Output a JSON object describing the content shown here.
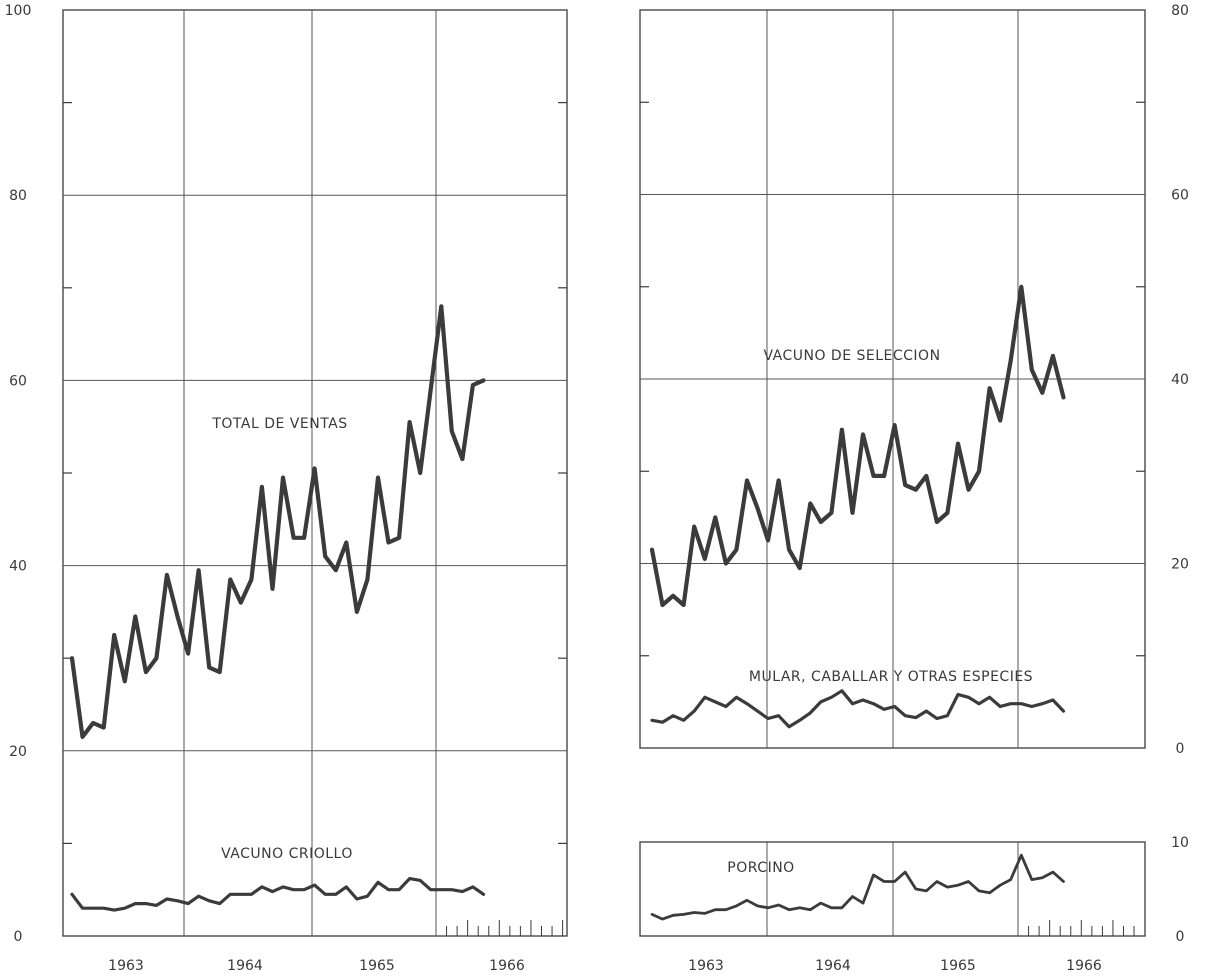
{
  "chart_data": [
    {
      "type": "line",
      "panel": "left",
      "x_start": "1963-01",
      "x_step": "month",
      "ylim": [
        0,
        100
      ],
      "yticks": [
        "100",
        "80",
        "60",
        "40",
        "20",
        "0"
      ],
      "minor_yticks": [
        10,
        30,
        50,
        70,
        90
      ],
      "xtick_labels": [
        "1963",
        "1964",
        "1965",
        "1966"
      ],
      "grid": true,
      "series": [
        {
          "name": "TOTAL DE VENTAS",
          "values": [
            30,
            21.5,
            23,
            22.5,
            32.5,
            27.5,
            34.5,
            28.5,
            30,
            39,
            34.5,
            30.5,
            39.5,
            29,
            28.5,
            38.5,
            36,
            38.5,
            48.5,
            37.5,
            49.5,
            43,
            43,
            50.5,
            41,
            39.5,
            42.5,
            35,
            38.5,
            49.5,
            42.5,
            43,
            55.5,
            50,
            59,
            68,
            54.5,
            51.5,
            59.5,
            60
          ]
        },
        {
          "name": "VACUNO CRIOLLO",
          "values": [
            4.5,
            3,
            3,
            3,
            2.8,
            3,
            3.5,
            3.5,
            3.3,
            4,
            3.8,
            3.5,
            4.3,
            3.8,
            3.5,
            4.5,
            4.5,
            4.5,
            5.3,
            4.8,
            5.3,
            5,
            5,
            5.5,
            4.5,
            4.5,
            5.3,
            4,
            4.3,
            5.8,
            5,
            5,
            6.2,
            6,
            5,
            5,
            5,
            4.8,
            5.3,
            4.5
          ]
        }
      ]
    },
    {
      "type": "line",
      "panel": "right-upper",
      "x_start": "1963-01",
      "x_step": "month",
      "ylim": [
        0,
        80
      ],
      "yticks": [
        "80",
        "60",
        "40",
        "20",
        "0"
      ],
      "minor_yticks": [
        10,
        30,
        50,
        70
      ],
      "grid": true,
      "series": [
        {
          "name": "VACUNO DE SELECCION",
          "values": [
            21.5,
            15.5,
            16.5,
            15.5,
            24,
            20.5,
            25,
            20,
            21.5,
            29,
            26,
            22.5,
            29,
            21.5,
            19.5,
            26.5,
            24.5,
            25.5,
            34.5,
            25.5,
            34,
            29.5,
            29.5,
            35,
            28.5,
            28,
            29.5,
            24.5,
            25.5,
            33,
            28,
            30,
            39,
            35.5,
            42,
            50,
            41,
            38.5,
            42.5,
            38
          ]
        },
        {
          "name": "MULAR, CABALLAR Y OTRAS ESPECIES",
          "values": [
            3,
            2.8,
            3.5,
            3,
            4,
            5.5,
            5,
            4.5,
            5.5,
            4.8,
            4,
            3.2,
            3.5,
            2.3,
            3,
            3.8,
            5,
            5.5,
            6.2,
            4.8,
            5.2,
            4.8,
            4.2,
            4.5,
            3.5,
            3.3,
            4,
            3.2,
            3.5,
            5.8,
            5.5,
            4.8,
            5.5,
            4.5,
            4.8,
            4.8,
            4.5,
            4.8,
            5.2,
            4
          ]
        }
      ]
    },
    {
      "type": "line",
      "panel": "right-lower",
      "x_start": "1963-01",
      "x_step": "month",
      "ylim": [
        0,
        10
      ],
      "yticks": [
        "10",
        "0"
      ],
      "xtick_labels": [
        "1963",
        "1964",
        "1965",
        "1966"
      ],
      "grid": true,
      "series": [
        {
          "name": "PORCINO",
          "values": [
            2.3,
            1.8,
            2.2,
            2.3,
            2.5,
            2.4,
            2.8,
            2.8,
            3.2,
            3.8,
            3.2,
            3,
            3.3,
            2.8,
            3,
            2.8,
            3.5,
            3,
            3,
            4.2,
            3.5,
            6.5,
            5.8,
            5.8,
            6.8,
            5,
            4.8,
            5.8,
            5.2,
            5.4,
            5.8,
            4.8,
            4.6,
            5.4,
            6,
            8.6,
            6,
            6.2,
            6.8,
            5.8
          ]
        }
      ]
    }
  ]
}
